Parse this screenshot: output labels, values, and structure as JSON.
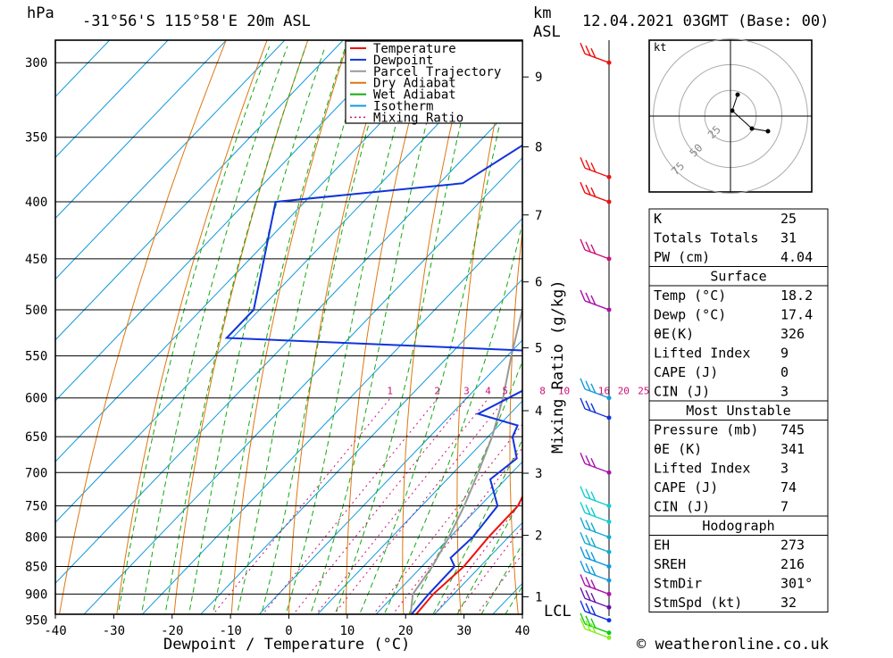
{
  "header": {
    "station": "-31°56'S 115°58'E 20m ASL",
    "datetime": "12.04.2021 03GMT (Base: 00)",
    "pressure_unit": "hPa",
    "height_unit": "km",
    "height_ref": "ASL",
    "lcl_label": "LCL"
  },
  "footer": {
    "copyright": "© weatheronline.co.uk"
  },
  "chart_data": {
    "type": "skew-t",
    "xlabel": "Dewpoint / Temperature (°C)",
    "ylabel_left": "hPa",
    "ylabel_right": "Mixing Ratio (g/kg)",
    "x_ticks": [
      -40,
      -30,
      -20,
      -10,
      0,
      10,
      20,
      30,
      40
    ],
    "pressure_ticks": [
      300,
      350,
      400,
      450,
      500,
      550,
      600,
      650,
      700,
      750,
      800,
      850,
      900,
      950
    ],
    "pressure_range": [
      985,
      300
    ],
    "km_ticks": [
      {
        "label": "1",
        "p": 905
      },
      {
        "label": "2",
        "p": 797
      },
      {
        "label": "3",
        "p": 701
      },
      {
        "label": "4",
        "p": 616
      },
      {
        "label": "5",
        "p": 541
      },
      {
        "label": "6",
        "p": 472
      },
      {
        "label": "7",
        "p": 411
      },
      {
        "label": "8",
        "p": 357
      },
      {
        "label": "9",
        "p": 309
      }
    ],
    "mixing_ratio_labels": [
      "1",
      "2",
      "3",
      "4",
      "5",
      "8",
      "10",
      "16",
      "20",
      "25"
    ],
    "legend": [
      {
        "name": "Temperature",
        "color": "#ee1111"
      },
      {
        "name": "Dewpoint",
        "color": "#1133dd"
      },
      {
        "name": "Parcel Trajectory",
        "color": "#999999"
      },
      {
        "name": "Dry Adiabat",
        "color": "#dd7711"
      },
      {
        "name": "Wet Adiabat",
        "color": "#11aa11"
      },
      {
        "name": "Isotherm",
        "color": "#1199dd"
      },
      {
        "name": "Mixing Ratio",
        "color": "#cc1177"
      }
    ],
    "temperature": [
      {
        "p": 985,
        "t": 18.2
      },
      {
        "p": 950,
        "t": 17.0
      },
      {
        "p": 900,
        "t": 16.5
      },
      {
        "p": 850,
        "t": 17.2
      },
      {
        "p": 800,
        "t": 16.6
      },
      {
        "p": 750,
        "t": 16.5
      },
      {
        "p": 700,
        "t": 13.8
      },
      {
        "p": 650,
        "t": 10.2
      },
      {
        "p": 600,
        "t": 5.9
      },
      {
        "p": 560,
        "t": 2.6
      },
      {
        "p": 550,
        "t": 1.8
      },
      {
        "p": 520,
        "t": 2.0
      },
      {
        "p": 500,
        "t": -0.3
      },
      {
        "p": 470,
        "t": -3.5
      },
      {
        "p": 450,
        "t": -5.8
      },
      {
        "p": 400,
        "t": -13.0
      },
      {
        "p": 380,
        "t": -16.0
      },
      {
        "p": 360,
        "t": -21.0
      }
    ],
    "dewpoint": [
      {
        "p": 985,
        "t": 17.4
      },
      {
        "p": 950,
        "t": 16.2
      },
      {
        "p": 900,
        "t": 15.7
      },
      {
        "p": 850,
        "t": 15.6
      },
      {
        "p": 835,
        "t": 13.5
      },
      {
        "p": 800,
        "t": 13.9
      },
      {
        "p": 750,
        "t": 13.0
      },
      {
        "p": 710,
        "t": 7.4
      },
      {
        "p": 680,
        "t": 8.5
      },
      {
        "p": 650,
        "t": 4.2
      },
      {
        "p": 635,
        "t": 3.2
      },
      {
        "p": 620,
        "t": -5.5
      },
      {
        "p": 590,
        "t": -1.5
      },
      {
        "p": 550,
        "t": 0.0
      },
      {
        "p": 545,
        "t": -4.0
      },
      {
        "p": 530,
        "t": -61.0
      },
      {
        "p": 500,
        "t": -61.0
      },
      {
        "p": 400,
        "t": -75.0
      },
      {
        "p": 385,
        "t": -46.0
      },
      {
        "p": 310,
        "t": -35.0
      },
      {
        "p": 305,
        "t": -76.0
      },
      {
        "p": 300,
        "t": -82.0
      }
    ],
    "parcel": [
      {
        "p": 985,
        "t": 18.2
      },
      {
        "p": 950,
        "t": 16.8
      },
      {
        "p": 900,
        "t": 13.0
      },
      {
        "p": 850,
        "t": 11.8
      },
      {
        "p": 800,
        "t": 9.8
      },
      {
        "p": 750,
        "t": 7.3
      },
      {
        "p": 700,
        "t": 4.2
      },
      {
        "p": 650,
        "t": 0.7
      },
      {
        "p": 600,
        "t": -3.8
      },
      {
        "p": 550,
        "t": -9.3
      },
      {
        "p": 500,
        "t": -15.0
      },
      {
        "p": 450,
        "t": -21.8
      },
      {
        "p": 400,
        "t": -29.5
      },
      {
        "p": 350,
        "t": -38.5
      },
      {
        "p": 310,
        "t": -47.0
      }
    ],
    "wind_barb_pressures": [
      300,
      380,
      400,
      450,
      500,
      600,
      625,
      700,
      750,
      775,
      800,
      825,
      850,
      875,
      900,
      925,
      950,
      975,
      985
    ],
    "wind_barb_colors": [
      "#ee1111",
      "#ee1111",
      "#ee1111",
      "#cc1177",
      "#aa11aa",
      "#1199dd",
      "#1133dd",
      "#aa11aa",
      "#11cccc",
      "#11cccc",
      "#11aacc",
      "#11aacc",
      "#1199dd",
      "#1199dd",
      "#aa11aa",
      "#6611aa",
      "#1133dd",
      "#11cc11",
      "#88ee22"
    ],
    "hodograph": {
      "unit_label": "kt",
      "ring_labels": [
        "25",
        "50",
        "75"
      ],
      "points": [
        [
          8,
          24
        ],
        [
          2,
          6
        ],
        [
          24,
          -14
        ],
        [
          42,
          -17
        ]
      ]
    }
  },
  "indices": {
    "general": [
      {
        "label": "K",
        "value": "25"
      },
      {
        "label": "Totals Totals",
        "value": "31"
      },
      {
        "label": "PW (cm)",
        "value": "4.04"
      }
    ],
    "surface_title": "Surface",
    "surface": [
      {
        "label": "Temp (°C)",
        "value": "18.2"
      },
      {
        "label": "Dewp (°C)",
        "value": "17.4"
      },
      {
        "label": "θE(K)",
        "value": "326"
      },
      {
        "label": "Lifted Index",
        "value": "9"
      },
      {
        "label": "CAPE (J)",
        "value": "0"
      },
      {
        "label": "CIN (J)",
        "value": "3"
      }
    ],
    "most_unstable_title": "Most Unstable",
    "most_unstable": [
      {
        "label": "Pressure (mb)",
        "value": "745"
      },
      {
        "label": "θE (K)",
        "value": "341"
      },
      {
        "label": "Lifted Index",
        "value": "3"
      },
      {
        "label": "CAPE (J)",
        "value": "74"
      },
      {
        "label": "CIN (J)",
        "value": "7"
      }
    ],
    "hodograph_title": "Hodograph",
    "hodograph": [
      {
        "label": "EH",
        "value": "273"
      },
      {
        "label": "SREH",
        "value": "216"
      },
      {
        "label": "StmDir",
        "value": "301°"
      },
      {
        "label": "StmSpd (kt)",
        "value": "32"
      }
    ]
  }
}
